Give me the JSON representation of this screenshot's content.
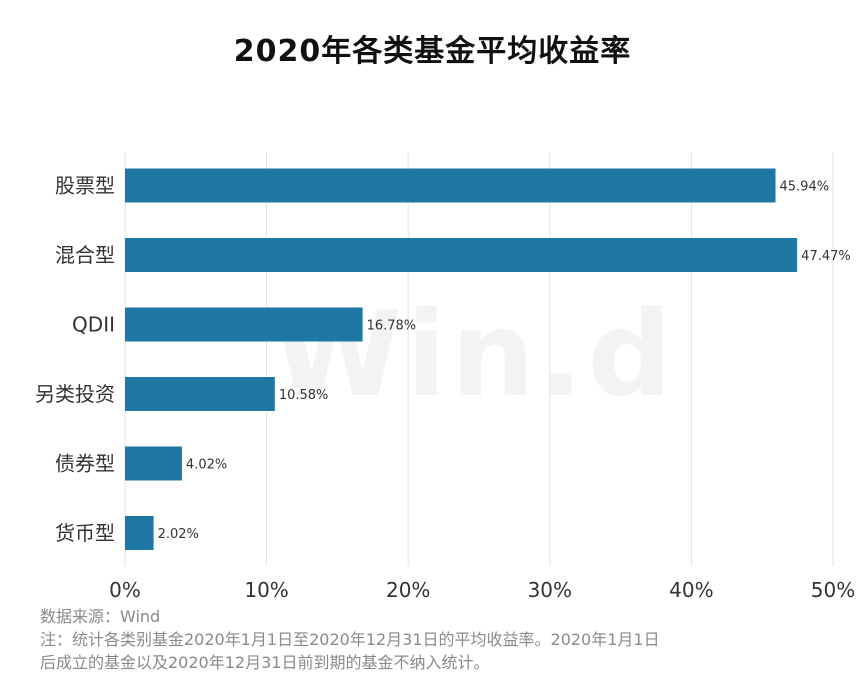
{
  "page": {
    "source": "数据来源：Wind",
    "note_line1": "注：统计各类别基金2020年1月1日至2020年12月31日的平均收益率。2020年1月1日",
    "note_line2": "后成立的基金以及2020年12月31日前到期的基金不纳入统计。",
    "watermark": "Win.d"
  },
  "colors": {
    "bar": "#1f77a4",
    "grid": "#e3e3e3",
    "text": "#333333"
  },
  "chart_data": {
    "type": "bar",
    "orientation": "horizontal",
    "title": "2020年各类基金平均收益率",
    "categories": [
      "股票型",
      "混合型",
      "QDII",
      "另类投资",
      "债券型",
      "货币型"
    ],
    "values": [
      45.94,
      47.47,
      16.78,
      10.58,
      4.02,
      2.02
    ],
    "value_labels": [
      "45.94%",
      "47.47%",
      "16.78%",
      "10.58%",
      "4.02%",
      "2.02%"
    ],
    "xlim": [
      0,
      50
    ],
    "xticks": [
      0,
      10,
      20,
      30,
      40,
      50
    ],
    "xtick_labels": [
      "0%",
      "10%",
      "20%",
      "30%",
      "40%",
      "50%"
    ],
    "grid": true,
    "legend": "none"
  }
}
